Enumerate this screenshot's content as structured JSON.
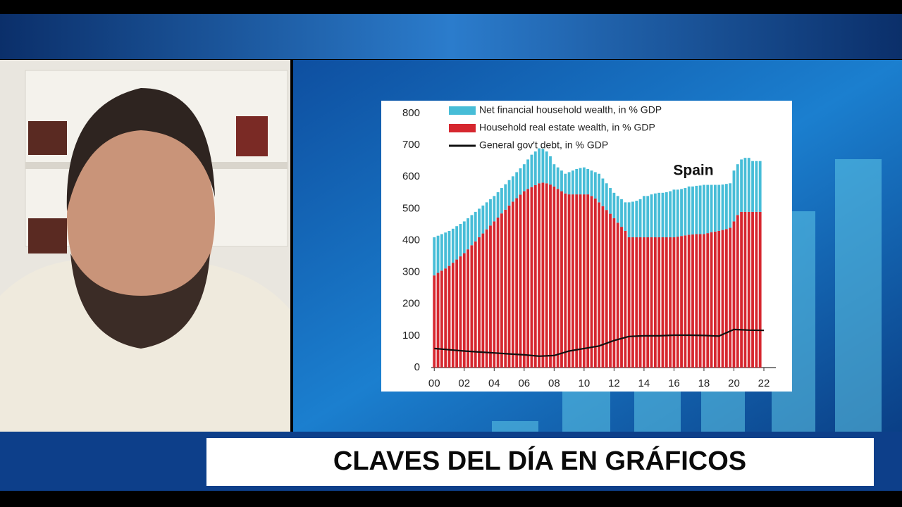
{
  "chart_data": {
    "type": "bar",
    "stacked": true,
    "annotation": "Spain",
    "x": [
      0,
      0.25,
      0.5,
      0.75,
      1,
      1.25,
      1.5,
      1.75,
      2,
      2.25,
      2.5,
      2.75,
      3,
      3.25,
      3.5,
      3.75,
      4,
      4.25,
      4.5,
      4.75,
      5,
      5.25,
      5.5,
      5.75,
      6,
      6.25,
      6.5,
      6.75,
      7,
      7.25,
      7.5,
      7.75,
      8,
      8.25,
      8.5,
      8.75,
      9,
      9.25,
      9.5,
      9.75,
      10,
      10.25,
      10.5,
      10.75,
      11,
      11.25,
      11.5,
      11.75,
      12,
      12.25,
      12.5,
      12.75,
      13,
      13.25,
      13.5,
      13.75,
      14,
      14.25,
      14.5,
      14.75,
      15,
      15.25,
      15.5,
      15.75,
      16,
      16.25,
      16.5,
      16.75,
      17,
      17.25,
      17.5,
      17.75,
      18,
      18.25,
      18.5,
      18.75,
      19,
      19.25,
      19.5,
      19.75,
      20,
      20.25,
      20.5,
      20.75,
      21,
      21.25,
      21.5,
      21.75
    ],
    "series": [
      {
        "name": "Net financial household wealth, in % GDP",
        "color": "#47bdd7",
        "values": [
          120,
          117,
          115,
          113,
          110,
          107,
          105,
          102,
          100,
          98,
          95,
          93,
          90,
          88,
          85,
          83,
          80,
          80,
          80,
          80,
          80,
          80,
          82,
          83,
          85,
          93,
          102,
          106,
          110,
          106,
          100,
          89,
          70,
          68,
          65,
          62,
          70,
          75,
          80,
          83,
          85,
          80,
          80,
          83,
          90,
          87,
          84,
          81,
          80,
          84,
          87,
          90,
          110,
          112,
          115,
          120,
          130,
          130,
          135,
          138,
          140,
          140,
          142,
          145,
          150,
          148,
          148,
          149,
          152,
          151,
          152,
          153,
          155,
          152,
          149,
          147,
          145,
          143,
          142,
          140,
          160,
          160,
          165,
          170,
          170,
          160,
          160,
          160
        ]
      },
      {
        "name": "Household real estate wealth, in % GDP",
        "color": "#d6272f",
        "values": [
          290,
          298,
          305,
          312,
          320,
          330,
          340,
          350,
          360,
          372,
          385,
          397,
          410,
          422,
          435,
          447,
          460,
          472,
          485,
          497,
          510,
          522,
          533,
          544,
          555,
          562,
          568,
          574,
          580,
          582,
          580,
          576,
          570,
          562,
          555,
          548,
          545,
          545,
          545,
          545,
          545,
          545,
          540,
          532,
          520,
          508,
          496,
          484,
          470,
          456,
          443,
          430,
          410,
          410,
          410,
          410,
          410,
          410,
          410,
          410,
          410,
          410,
          410,
          410,
          410,
          412,
          414,
          416,
          418,
          419,
          420,
          420,
          420,
          423,
          426,
          428,
          430,
          433,
          436,
          440,
          460,
          480,
          490,
          490,
          490,
          490,
          490,
          490
        ]
      },
      {
        "name": "General gov't debt, in % GDP",
        "color": "#111111",
        "type": "line",
        "x": [
          0,
          1,
          2,
          3,
          4,
          5,
          6,
          7,
          8,
          9,
          10,
          11,
          12,
          13,
          14,
          15,
          16,
          17,
          18,
          19,
          20,
          21,
          22
        ],
        "values": [
          60,
          56,
          52,
          49,
          46,
          43,
          40,
          36,
          38,
          52,
          60,
          68,
          85,
          98,
          100,
          100,
          102,
          102,
          101,
          99,
          120,
          118,
          117
        ]
      }
    ],
    "xlim": [
      -0.2,
      22.8
    ],
    "xticks": [
      {
        "value": 0,
        "label": "00"
      },
      {
        "value": 2,
        "label": "02"
      },
      {
        "value": 4,
        "label": "04"
      },
      {
        "value": 6,
        "label": "06"
      },
      {
        "value": 8,
        "label": "08"
      },
      {
        "value": 10,
        "label": "10"
      },
      {
        "value": 12,
        "label": "12"
      },
      {
        "value": 14,
        "label": "14"
      },
      {
        "value": 16,
        "label": "16"
      },
      {
        "value": 18,
        "label": "18"
      },
      {
        "value": 20,
        "label": "20"
      },
      {
        "value": 22,
        "label": "22"
      }
    ],
    "ylim": [
      0,
      800
    ],
    "yticks": [
      0,
      100,
      200,
      300,
      400,
      500,
      600,
      700,
      800
    ],
    "grid": false
  },
  "banner": {
    "title": "CLAVES DEL DÍA EN GRÁFICOS"
  }
}
